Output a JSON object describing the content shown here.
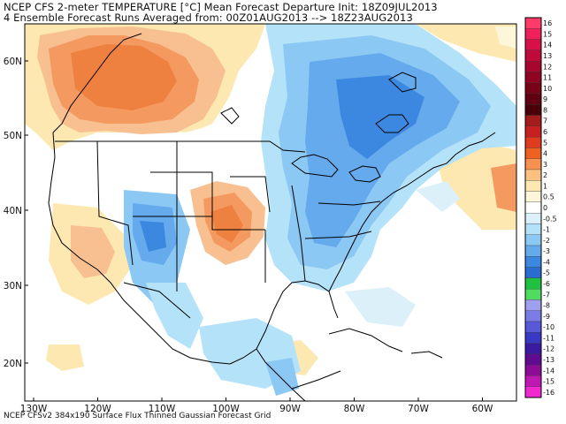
{
  "header": {
    "line1": "NCEP CFS 2-meter TEMPERATURE [°C] Mean Forecast Departure Init: 18Z09JUL2013",
    "line2": "4 Ensemble Forecast Runs Averaged from: 00Z01AUG2013 --> 18Z23AUG2013"
  },
  "footer": "NCEP CFSv2 384x190 Surface Flux Thinned Gaussian Forecast Grid",
  "axes": {
    "lon_labels": [
      "130W",
      "120W",
      "110W",
      "100W",
      "90W",
      "80W",
      "70W",
      "60W"
    ],
    "lat_labels": [
      "60N",
      "50N",
      "40N",
      "30N",
      "20N"
    ]
  },
  "colorbar": {
    "labels": [
      "16",
      "15",
      "14",
      "13",
      "12",
      "11",
      "10",
      "9",
      "8",
      "7",
      "6",
      "5",
      "4",
      "3",
      "2",
      "1",
      "0.5",
      "0",
      "-0.5",
      "-1",
      "-2",
      "-3",
      "-4",
      "-5",
      "-6",
      "-7",
      "-8",
      "-9",
      "-10",
      "-11",
      "-12",
      "-13",
      "-14",
      "-15",
      "-16"
    ],
    "colors": [
      "#ff3b6b",
      "#f0205a",
      "#d8104a",
      "#c00a3c",
      "#a8062e",
      "#900422",
      "#780218",
      "#600010",
      "#4a0008",
      "#a51c1c",
      "#c82020",
      "#e03a20",
      "#f06020",
      "#f89050",
      "#fcc080",
      "#fce8b0",
      "#fdf6d8",
      "#ffffff",
      "#dcf0fa",
      "#b4e2f8",
      "#8cc8f4",
      "#64aaec",
      "#3c88e0",
      "#2a6cd0",
      "#20c040",
      "#50dc60",
      "#a0a0f0",
      "#7c7ce6",
      "#5858d8",
      "#3838c4",
      "#3a1aa0",
      "#600c90",
      "#8c0c98",
      "#c018b4",
      "#f028d0"
    ]
  },
  "colors": {
    "land_border": "#000000",
    "water_background": "#ffffff"
  }
}
